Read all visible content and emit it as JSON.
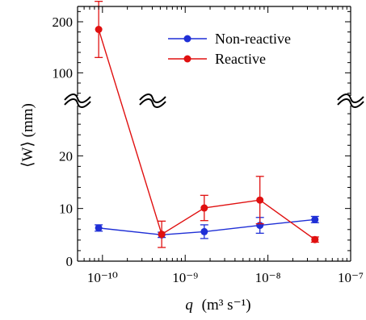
{
  "chart_data": {
    "type": "line",
    "title": "",
    "ylabel": "⟨W⟩ (mm)",
    "xlabel_var": "q",
    "xlabel_units": "(m³ s⁻¹)",
    "x_scale": "log",
    "x_ticks": [
      {
        "value": 1e-10,
        "label": "10⁻¹⁰"
      },
      {
        "value": 1e-09,
        "label": "10⁻⁹"
      },
      {
        "value": 1e-08,
        "label": "10⁻⁸"
      },
      {
        "value": 1e-07,
        "label": "10⁻⁷"
      }
    ],
    "xlim": [
      5e-11,
      1e-07
    ],
    "y_axis": "broken",
    "y_lower_range": [
      0,
      30
    ],
    "y_upper_range": [
      50,
      230
    ],
    "y_ticks": [
      {
        "value": 0,
        "label": "0"
      },
      {
        "value": 10,
        "label": "10"
      },
      {
        "value": 20,
        "label": "20"
      },
      {
        "value": 100,
        "label": "100"
      },
      {
        "value": 200,
        "label": "200"
      }
    ],
    "legend_position": "top-right",
    "series": [
      {
        "name": "Non-reactive",
        "color": "#1f2fd6",
        "x": [
          9e-11,
          5.2e-10,
          1.7e-09,
          8e-09,
          3.7e-08
        ],
        "y": [
          6.3,
          5.0,
          5.6,
          6.8,
          7.9
        ],
        "err": [
          0.6,
          0.5,
          1.3,
          1.5,
          0.6
        ]
      },
      {
        "name": "Reactive",
        "color": "#e01010",
        "x": [
          9e-11,
          5.2e-10,
          1.7e-09,
          8e-09,
          3.7e-08
        ],
        "y": [
          185,
          5.1,
          10.1,
          11.6,
          4.1
        ],
        "err": [
          55,
          2.5,
          2.4,
          4.5,
          0.5
        ]
      }
    ]
  }
}
